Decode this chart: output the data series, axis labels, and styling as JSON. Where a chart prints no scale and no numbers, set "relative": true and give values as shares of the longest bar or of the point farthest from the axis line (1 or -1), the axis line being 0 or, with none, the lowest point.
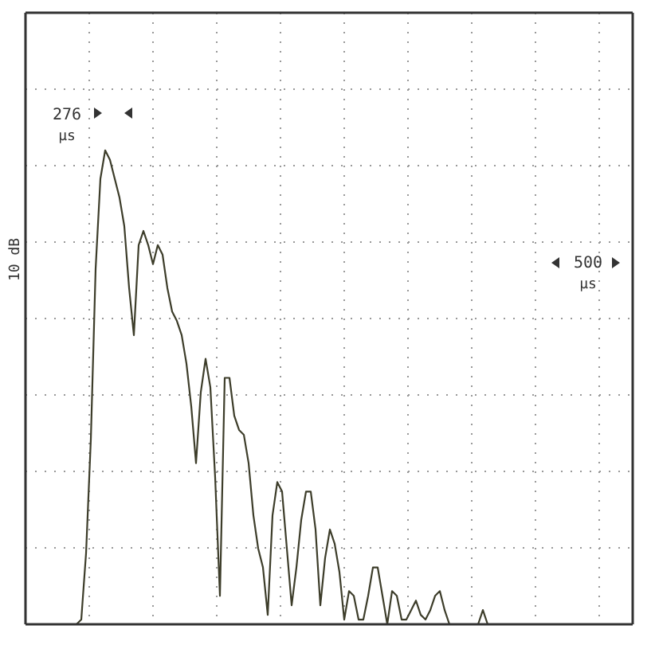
{
  "chart_data": {
    "type": "line",
    "relative": true,
    "ylabel": "10 dB",
    "grid": true,
    "marker": "none",
    "line_style": "solid",
    "annotations": [
      "276",
      "µs",
      "500",
      "µs"
    ],
    "categories": [
      null,
      null,
      null,
      null,
      null,
      null,
      null,
      null,
      null,
      null,
      null,
      null,
      null,
      null,
      null,
      null,
      null,
      null,
      null,
      null,
      null,
      null,
      null,
      null,
      null,
      null,
      null,
      null,
      null,
      null,
      null,
      null,
      null,
      null,
      null,
      null,
      null,
      null,
      null,
      null,
      null,
      null,
      null,
      null,
      null,
      null,
      null,
      null,
      null,
      null,
      null,
      null,
      null,
      null,
      null,
      null,
      null,
      null,
      null,
      null,
      null,
      null,
      null,
      null,
      null,
      null,
      null,
      null,
      null,
      null,
      null,
      null,
      null,
      null,
      null,
      null,
      null,
      null,
      null,
      null,
      null,
      null,
      null,
      null,
      null,
      null,
      null,
      null,
      null,
      null,
      null,
      null,
      null,
      null,
      null,
      null,
      null,
      null,
      null,
      null,
      null,
      null,
      null,
      null,
      null,
      null,
      null,
      null,
      null,
      null,
      null,
      null,
      null,
      null,
      null,
      null,
      null,
      null,
      null,
      null,
      null,
      null,
      null,
      null,
      null,
      null,
      null
    ],
    "series": [
      {
        "color": "#3d3d2a",
        "values": [
          0,
          0,
          0,
          0,
          0,
          0,
          0,
          0,
          0,
          0,
          0,
          0.01,
          0.15,
          0.39,
          0.75,
          0.94,
          1,
          0.98,
          0.94,
          0.9,
          0.84,
          0.71,
          0.61,
          0.8,
          0.83,
          0.8,
          0.76,
          0.8,
          0.78,
          0.71,
          0.66,
          0.64,
          0.61,
          0.55,
          0.46,
          0.34,
          0.49,
          0.56,
          0.5,
          0.31,
          0.06,
          0.52,
          0.52,
          0.44,
          0.41,
          0.4,
          0.34,
          0.23,
          0.16,
          0.12,
          0.02,
          0.23,
          0.3,
          0.28,
          0.16,
          0.04,
          0.12,
          0.22,
          0.28,
          0.28,
          0.2,
          0.04,
          0.14,
          0.2,
          0.17,
          0.11,
          0.01,
          0.07,
          0.06,
          0.01,
          0.01,
          0.06,
          0.12,
          0.12,
          0.06,
          0,
          0.07,
          0.06,
          0.01,
          0.01,
          0.03,
          0.05,
          0.02,
          0.01,
          0.03,
          0.06,
          0.07,
          0.03,
          0,
          0,
          0,
          0,
          0,
          0,
          0,
          0.03,
          0,
          0,
          0,
          0,
          0,
          0,
          0,
          0,
          0,
          0,
          0,
          0,
          0,
          0,
          0,
          0,
          0,
          0,
          0,
          0,
          0,
          0,
          0,
          0,
          0,
          0,
          0,
          0,
          0,
          0,
          0
        ]
      }
    ]
  }
}
